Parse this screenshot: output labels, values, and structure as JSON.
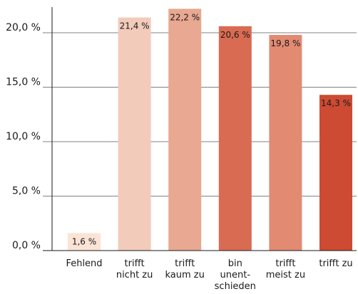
{
  "chart_data": {
    "type": "bar",
    "title": "",
    "xlabel": "",
    "ylabel": "",
    "ylim": [
      0,
      22.5
    ],
    "grid": true,
    "yticks": [
      {
        "value": 0,
        "label": "0,0 %"
      },
      {
        "value": 5,
        "label": "5,0 %"
      },
      {
        "value": 10,
        "label": "10,0 %"
      },
      {
        "value": 15,
        "label": "15,0 %"
      },
      {
        "value": 20,
        "label": "20,0 %"
      }
    ],
    "categories": [
      {
        "lines": [
          "Fehlend"
        ]
      },
      {
        "lines": [
          "trifft",
          "nicht zu"
        ]
      },
      {
        "lines": [
          "trifft",
          "kaum zu"
        ]
      },
      {
        "lines": [
          "bin",
          "unent-",
          "schieden"
        ]
      },
      {
        "lines": [
          "trifft",
          "meist zu"
        ]
      },
      {
        "lines": [
          "trifft zu"
        ]
      }
    ],
    "values": [
      1.6,
      21.4,
      22.2,
      20.6,
      19.8,
      14.3
    ],
    "data_labels": [
      "1,6 %",
      "21,4 %",
      "22,2 %",
      "20,6 %",
      "19,8 %",
      "14,3 %"
    ],
    "colors": [
      "#fbe3d6",
      "#f2cbbb",
      "#e8a891",
      "#d96b52",
      "#e38a72",
      "#cd4a33"
    ],
    "grid_color": "#808080",
    "axis_color": "#1a1a1a"
  }
}
